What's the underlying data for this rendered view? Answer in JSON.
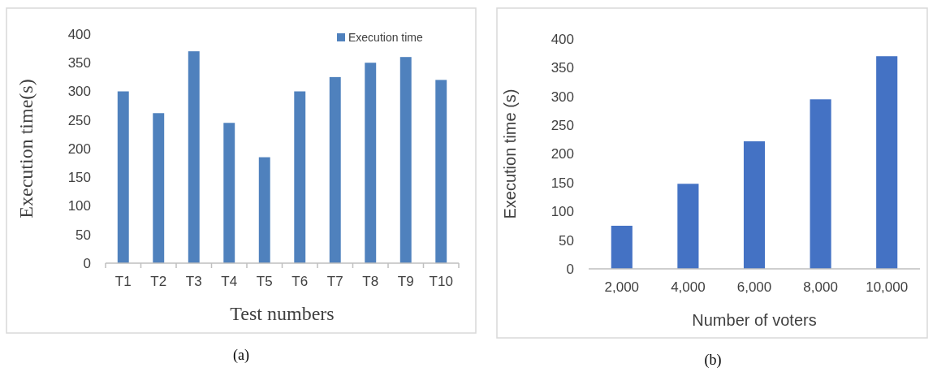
{
  "chart_data": [
    {
      "type": "bar",
      "xlabel": "Test numbers",
      "ylabel": "Execution time(s)",
      "categories": [
        "T1",
        "T2",
        "T3",
        "T4",
        "T5",
        "T6",
        "T7",
        "T8",
        "T9",
        "T10"
      ],
      "series": [
        {
          "name": "Execution time",
          "color": "#4f81bd",
          "values": [
            300,
            262,
            370,
            245,
            185,
            300,
            325,
            350,
            360,
            320
          ]
        }
      ],
      "ylim": [
        0,
        400
      ],
      "yticks": [
        0,
        50,
        100,
        150,
        200,
        250,
        300,
        350,
        400
      ],
      "legend": "top right",
      "annotations": [
        "(a)"
      ]
    },
    {
      "type": "bar",
      "xlabel": "Number of voters",
      "ylabel": "Execution time (s)",
      "categories": [
        "2,000",
        "4,000",
        "6,000",
        "8,000",
        "10,000"
      ],
      "series": [
        {
          "color": "#4472c4",
          "values": [
            75,
            148,
            222,
            295,
            370
          ]
        }
      ],
      "ylim": [
        0,
        400
      ],
      "yticks": [
        0,
        50,
        100,
        150,
        200,
        250,
        300,
        350,
        400
      ],
      "annotations": [
        "(b)"
      ]
    }
  ]
}
